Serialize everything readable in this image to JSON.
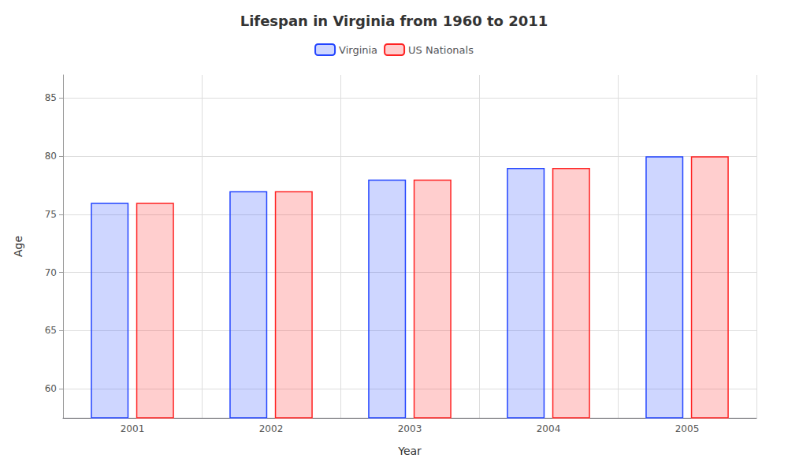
{
  "chart_data": {
    "type": "bar",
    "title": "Lifespan in Virginia from 1960 to 2011",
    "xlabel": "Year",
    "ylabel": "Age",
    "categories": [
      "2001",
      "2002",
      "2003",
      "2004",
      "2005"
    ],
    "series": [
      {
        "name": "Virginia",
        "color": "#2244ff",
        "values": [
          76,
          77,
          78,
          79,
          80
        ]
      },
      {
        "name": "US Nationals",
        "color": "#ff2222",
        "values": [
          76,
          77,
          78,
          79,
          80
        ]
      }
    ],
    "ylim": [
      57.5,
      87
    ],
    "yticks": [
      60,
      65,
      70,
      75,
      80,
      85
    ],
    "grid": true,
    "legend": "top"
  }
}
